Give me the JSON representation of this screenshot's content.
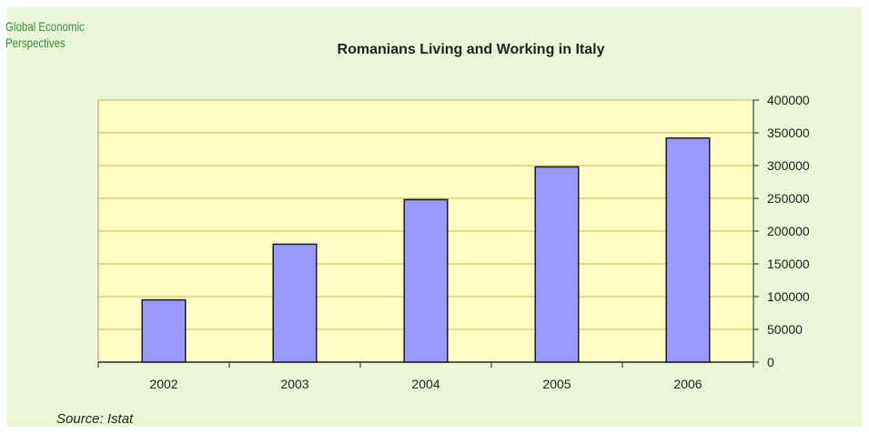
{
  "brand": {
    "line1": "Global Economic",
    "line2": "Perspectives"
  },
  "source": "Source: Istat",
  "colors": {
    "panel": "#eaf6d6",
    "plot": "#fffbc4",
    "bar": "#9999ff",
    "bar_stroke": "#1a1a1a",
    "grid": "#c9b84a"
  },
  "chart_data": {
    "type": "bar",
    "title": "Romanians Living and Working in Italy",
    "xlabel": "",
    "ylabel": "",
    "categories": [
      "2002",
      "2003",
      "2004",
      "2005",
      "2006"
    ],
    "values": [
      95000,
      180000,
      248000,
      298000,
      342000
    ],
    "ylim": [
      0,
      400000
    ],
    "yticks": [
      0,
      50000,
      100000,
      150000,
      200000,
      250000,
      300000,
      350000,
      400000
    ],
    "y_axis_side": "right",
    "grid": true,
    "legend": "none"
  }
}
